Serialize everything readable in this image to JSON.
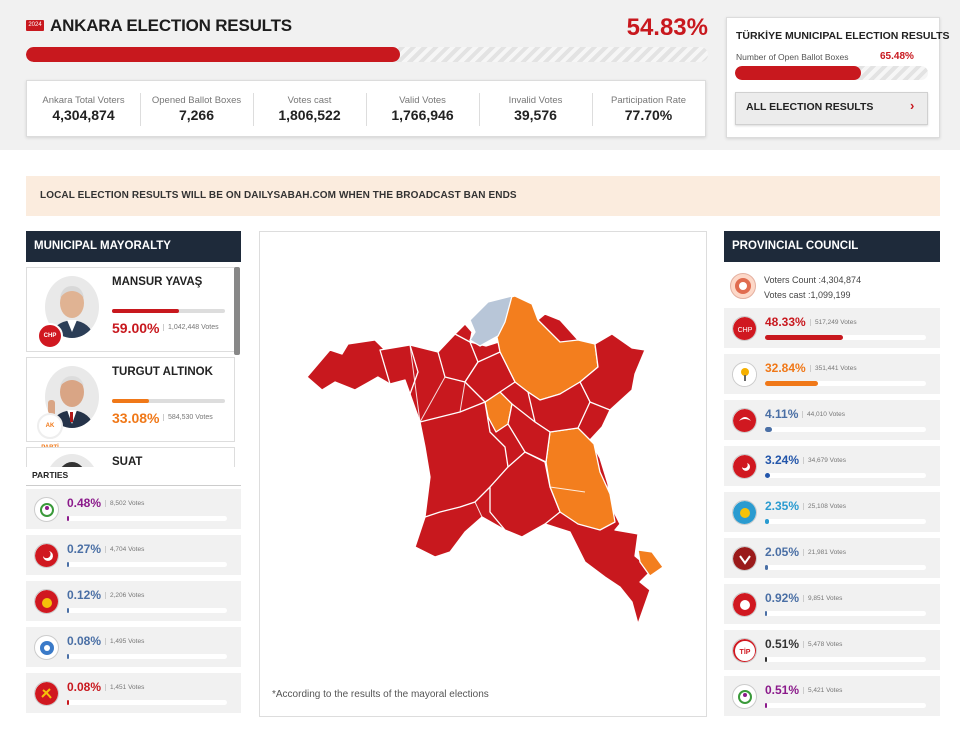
{
  "header": {
    "title": "ANKARA ELECTION RESULTS",
    "flag_text": "2024",
    "percent": "54.83%",
    "progress": 0.5483
  },
  "stats": [
    {
      "label": "Ankara Total Voters",
      "value": "4,304,874"
    },
    {
      "label": "Opened Ballot Boxes",
      "value": "7,266"
    },
    {
      "label": "Votes cast",
      "value": "1,806,522"
    },
    {
      "label": "Valid Votes",
      "value": "1,766,946"
    },
    {
      "label": "Invalid Votes",
      "value": "39,576"
    },
    {
      "label": "Participation Rate",
      "value": "77.70%"
    }
  ],
  "side_card": {
    "title": "TÜRKİYE MUNICIPAL ELECTION RESULTS",
    "subtitle": "Number of Open Ballot Boxes",
    "percent": "65.48%",
    "progress": 0.6548,
    "button_label": "ALL ELECTION RESULTS",
    "arrow": "›"
  },
  "notice": "LOCAL ELECTION RESULTS WILL BE ON DAILYSABAH.COM WHEN THE BROADCAST BAN ENDS",
  "mayoralty": {
    "title": "MUNICIPAL MAYORALTY",
    "candidates": [
      {
        "name": "MANSUR YAVAŞ",
        "percent": "59.00%",
        "votes": "1,042,448 Votes",
        "color": "#c8181e",
        "share": 0.59,
        "party": "CHP"
      },
      {
        "name": "TURGUT ALTINOK",
        "percent": "33.08%",
        "votes": "584,530 Votes",
        "color": "#f07818",
        "share": 0.3308,
        "party": "AK PARTİ"
      },
      {
        "name": "SUAT",
        "percent": "",
        "votes": "",
        "color": "#c8181e",
        "share": 0,
        "party": ""
      }
    ],
    "parties_label": "PARTIES",
    "parties": [
      {
        "percent": "0.48%",
        "votes": "8,502 Votes",
        "color": "#8b1a8b",
        "share": 0.0048,
        "logo": "dem-icon"
      },
      {
        "percent": "0.27%",
        "votes": "4,704 Votes",
        "color": "#4a6fa5",
        "share": 0.0027,
        "logo": "saadet-icon"
      },
      {
        "percent": "0.12%",
        "votes": "2,206 Votes",
        "color": "#4a6fa5",
        "share": 0.0012,
        "logo": "party-sun-icon"
      },
      {
        "percent": "0.08%",
        "votes": "1,495 Votes",
        "color": "#4a6fa5",
        "share": 0.0008,
        "logo": "party-blue-icon"
      },
      {
        "percent": "0.08%",
        "votes": "1,451 Votes",
        "color": "#c8181e",
        "share": 0.0008,
        "logo": "tkp-icon"
      }
    ]
  },
  "map": {
    "note": "*According to the results of the mayoral elections",
    "colors": {
      "chp": "#c8181e",
      "akp": "#f37e1e",
      "other": "#b8c6d8",
      "border": "#ffffff"
    }
  },
  "provincial": {
    "title": "PROVINCIAL COUNCIL",
    "voters_count": "Voters Count :4,304,874",
    "votes_cast": "Votes cast :1,099,199",
    "parties": [
      {
        "percent": "48.33%",
        "votes": "517,249 Votes",
        "color": "#c8181e",
        "share": 0.4833,
        "logo": "chp-icon"
      },
      {
        "percent": "32.84%",
        "votes": "351,441 Votes",
        "color": "#f07818",
        "share": 0.3284,
        "logo": "akp-icon"
      },
      {
        "percent": "4.11%",
        "votes": "44,010 Votes",
        "color": "#4a6fa5",
        "share": 0.0411,
        "logo": "yeniden-refah-icon"
      },
      {
        "percent": "3.24%",
        "votes": "34,679 Votes",
        "color": "#2255aa",
        "share": 0.0324,
        "logo": "mhp-icon"
      },
      {
        "percent": "2.35%",
        "votes": "25,108 Votes",
        "color": "#2a9bd0",
        "share": 0.0235,
        "logo": "iyi-icon"
      },
      {
        "percent": "2.05%",
        "votes": "21,981 Votes",
        "color": "#4a6fa5",
        "share": 0.0205,
        "logo": "zafer-icon"
      },
      {
        "percent": "0.92%",
        "votes": "9,851 Votes",
        "color": "#4a6fa5",
        "share": 0.0092,
        "logo": "bbp-icon"
      },
      {
        "percent": "0.51%",
        "votes": "5,478 Votes",
        "color": "#333333",
        "share": 0.0051,
        "logo": "tip-icon"
      },
      {
        "percent": "0.51%",
        "votes": "5,421 Votes",
        "color": "#8b1a8b",
        "share": 0.0051,
        "logo": "dem-icon"
      }
    ]
  }
}
